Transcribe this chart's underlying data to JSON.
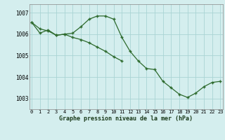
{
  "line1_x": [
    0,
    1,
    2,
    3,
    4,
    5,
    6,
    7,
    8,
    9,
    10,
    11,
    12,
    13,
    14,
    15,
    16,
    17,
    18,
    19,
    20,
    21,
    22,
    23
  ],
  "line1_y": [
    1006.55,
    1006.25,
    1006.15,
    1005.95,
    1006.0,
    1006.05,
    1006.35,
    1006.7,
    1006.85,
    1006.85,
    1006.7,
    1005.85,
    1005.2,
    1004.75,
    1004.4,
    1004.35,
    1003.8,
    1003.5,
    1003.2,
    1003.05,
    1003.25,
    1003.55,
    1003.75,
    1003.8
  ],
  "line2_x": [
    0,
    1,
    2,
    3,
    4,
    5,
    6,
    7,
    8,
    9,
    10,
    11
  ],
  "line2_y": [
    1006.55,
    1006.05,
    1006.2,
    1005.95,
    1006.0,
    1005.85,
    1005.75,
    1005.6,
    1005.4,
    1005.2,
    1004.95,
    1004.75
  ],
  "line_color": "#2d6a2d",
  "bg_color": "#d4eeee",
  "grid_color": "#aad4d4",
  "xlabel": "Graphe pression niveau de la mer (hPa)",
  "ylim": [
    1002.5,
    1007.4
  ],
  "xlim": [
    -0.3,
    23.3
  ],
  "yticks": [
    1003,
    1004,
    1005,
    1006,
    1007
  ],
  "ytick_labels": [
    "1003",
    "1004",
    "1005",
    "1006",
    "1007"
  ],
  "xticks": [
    0,
    1,
    2,
    3,
    4,
    5,
    6,
    7,
    8,
    9,
    10,
    11,
    12,
    13,
    14,
    15,
    16,
    17,
    18,
    19,
    20,
    21,
    22,
    23
  ],
  "xtick_labels": [
    "0",
    "1",
    "2",
    "3",
    "4",
    "5",
    "6",
    "7",
    "8",
    "9",
    "10",
    "11",
    "12",
    "13",
    "14",
    "15",
    "16",
    "17",
    "18",
    "19",
    "20",
    "21",
    "22",
    "23"
  ]
}
